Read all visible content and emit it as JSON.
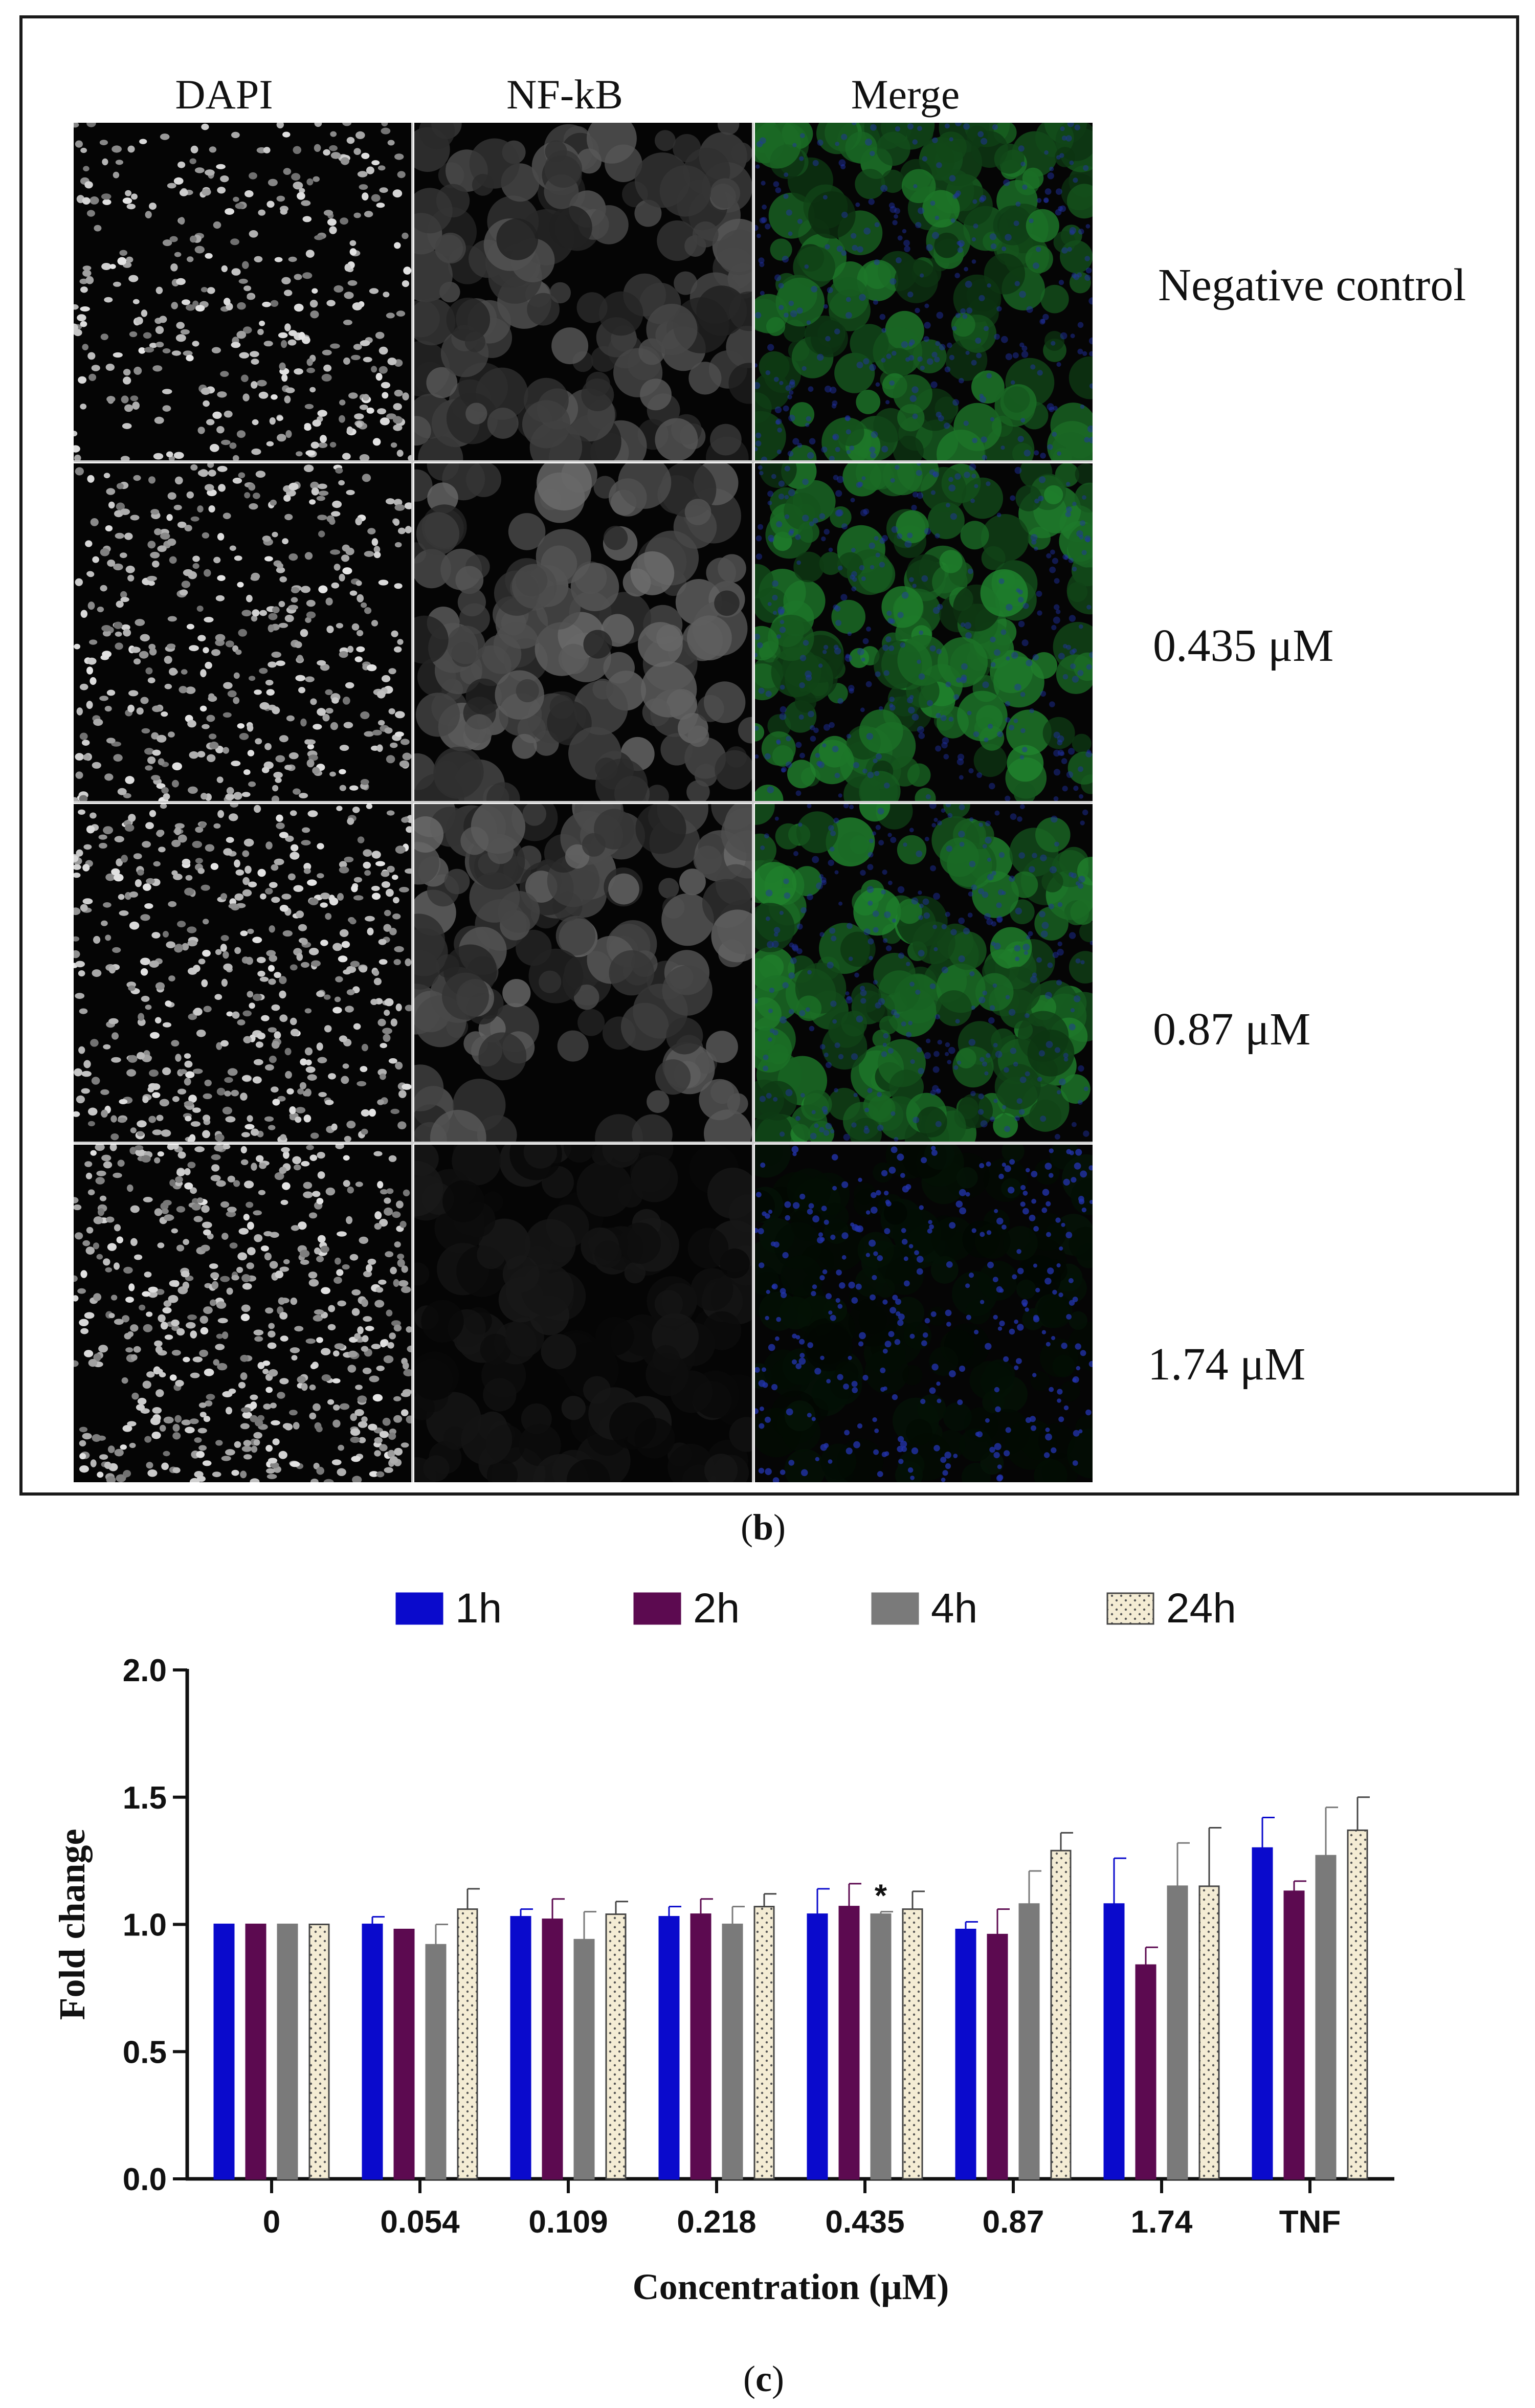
{
  "panel_b": {
    "columns": [
      "DAPI",
      "NF-kB",
      "Merge"
    ],
    "rows": [
      "Negative control",
      "0.435 μM",
      "0.87 μM",
      "1.74 μM"
    ],
    "caption_open": "(",
    "caption_letter": "b",
    "caption_close": ")",
    "channel_colors": {
      "dapi": "#e8e8e8",
      "nfkb": "#9a9a9a",
      "merge_green": "#2e8b3a",
      "merge_blue": "#2233aa"
    },
    "nfkb_intensity": [
      0.7,
      0.85,
      0.85,
      0.2
    ],
    "merge_green_level": [
      0.75,
      0.8,
      0.8,
      0.12
    ]
  },
  "panel_c": {
    "caption_open": "(",
    "caption_letter": "c",
    "caption_close": ")"
  },
  "chart_data": {
    "type": "bar",
    "title": "",
    "xlabel": "Concentration (μM)",
    "ylabel": "Fold change",
    "categories": [
      "0",
      "0.054",
      "0.109",
      "0.218",
      "0.435",
      "0.87",
      "1.74",
      "TNF"
    ],
    "ylim": [
      0,
      2.0
    ],
    "yticks": [
      "0.0",
      "0.5",
      "1.0",
      "1.5",
      "2.0"
    ],
    "legend_position": "top",
    "grid": false,
    "series": [
      {
        "name": "1h",
        "color": "#0a0acc",
        "pattern": "solid",
        "values": [
          1.0,
          1.0,
          1.03,
          1.03,
          1.04,
          0.98,
          1.08,
          1.3
        ],
        "errors": [
          0.0,
          0.03,
          0.03,
          0.04,
          0.1,
          0.03,
          0.18,
          0.12
        ]
      },
      {
        "name": "2h",
        "color": "#5c0a50",
        "pattern": "solid",
        "values": [
          1.0,
          0.98,
          1.02,
          1.04,
          1.07,
          0.96,
          0.84,
          1.13
        ],
        "errors": [
          0.0,
          0.0,
          0.08,
          0.06,
          0.09,
          0.1,
          0.07,
          0.04
        ]
      },
      {
        "name": "4h",
        "color": "#7a7a7a",
        "pattern": "solid",
        "values": [
          1.0,
          0.92,
          0.94,
          1.0,
          1.04,
          1.08,
          1.15,
          1.27
        ],
        "errors": [
          0.0,
          0.08,
          0.11,
          0.07,
          0.01,
          0.13,
          0.17,
          0.19
        ]
      },
      {
        "name": "24h",
        "color": "#f4ecd4",
        "pattern": "dots",
        "values": [
          1.0,
          1.06,
          1.04,
          1.07,
          1.06,
          1.29,
          1.15,
          1.37
        ],
        "errors": [
          0.0,
          0.08,
          0.05,
          0.05,
          0.07,
          0.07,
          0.23,
          0.13
        ]
      }
    ],
    "annotations": [
      {
        "text": "*",
        "category": "0.435",
        "series": "4h"
      }
    ]
  }
}
